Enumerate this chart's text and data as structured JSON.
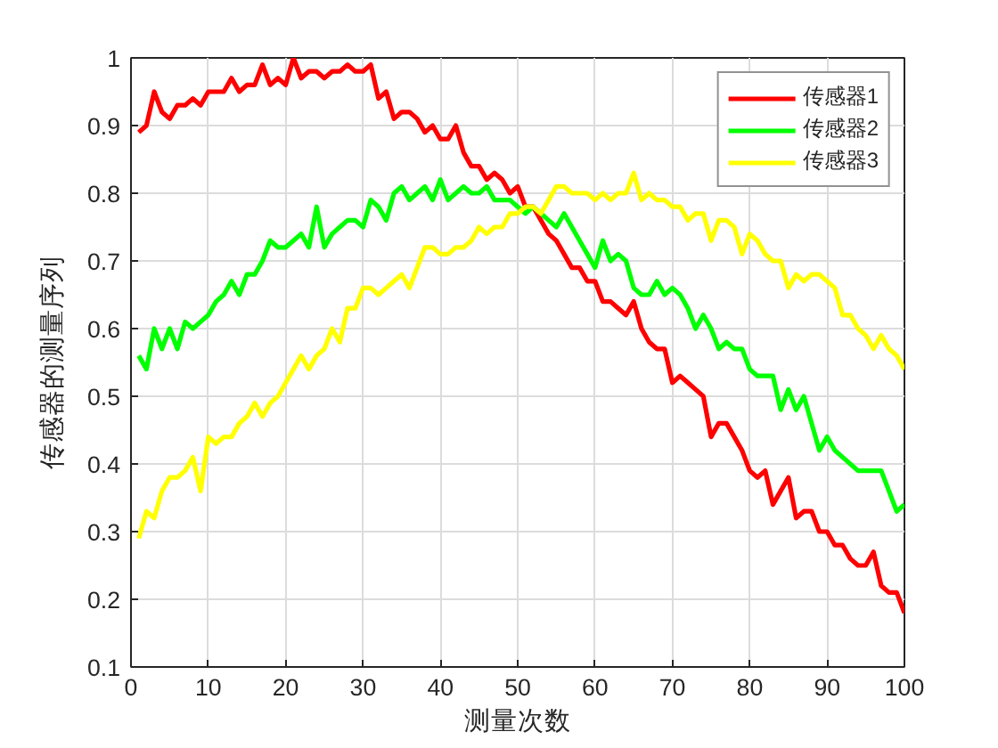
{
  "chart_data": {
    "type": "line",
    "xlabel": "测量次数",
    "ylabel": "传感器的测量序列",
    "xlim": [
      0,
      100
    ],
    "ylim": [
      0.1,
      1
    ],
    "xticks": [
      0,
      10,
      20,
      30,
      40,
      50,
      60,
      70,
      80,
      90,
      100
    ],
    "yticks": [
      0.1,
      0.2,
      0.3,
      0.4,
      0.5,
      0.6,
      0.7,
      0.8,
      0.9,
      1
    ],
    "grid": true,
    "legend": "top right",
    "line_style": "solid",
    "x": [
      1,
      2,
      3,
      4,
      5,
      6,
      7,
      8,
      9,
      10,
      11,
      12,
      13,
      14,
      15,
      16,
      17,
      18,
      19,
      20,
      21,
      22,
      23,
      24,
      25,
      26,
      27,
      28,
      29,
      30,
      31,
      32,
      33,
      34,
      35,
      36,
      37,
      38,
      39,
      40,
      41,
      42,
      43,
      44,
      45,
      46,
      47,
      48,
      49,
      50,
      51,
      52,
      53,
      54,
      55,
      56,
      57,
      58,
      59,
      60,
      61,
      62,
      63,
      64,
      65,
      66,
      67,
      68,
      69,
      70,
      71,
      72,
      73,
      74,
      75,
      76,
      77,
      78,
      79,
      80,
      81,
      82,
      83,
      84,
      85,
      86,
      87,
      88,
      89,
      90,
      91,
      92,
      93,
      94,
      95,
      96,
      97,
      98,
      99,
      100
    ],
    "series": [
      {
        "name": "传感器1",
        "color": "#ff0000",
        "values": [
          0.89,
          0.9,
          0.95,
          0.92,
          0.91,
          0.93,
          0.93,
          0.94,
          0.93,
          0.95,
          0.95,
          0.95,
          0.97,
          0.95,
          0.96,
          0.96,
          0.99,
          0.96,
          0.97,
          0.96,
          1.0,
          0.97,
          0.98,
          0.98,
          0.97,
          0.98,
          0.98,
          0.99,
          0.98,
          0.98,
          0.99,
          0.94,
          0.95,
          0.91,
          0.92,
          0.92,
          0.91,
          0.89,
          0.9,
          0.88,
          0.88,
          0.9,
          0.86,
          0.84,
          0.84,
          0.82,
          0.83,
          0.82,
          0.8,
          0.81,
          0.78,
          0.78,
          0.76,
          0.74,
          0.73,
          0.71,
          0.69,
          0.69,
          0.67,
          0.67,
          0.64,
          0.64,
          0.63,
          0.62,
          0.64,
          0.6,
          0.58,
          0.57,
          0.57,
          0.52,
          0.53,
          0.52,
          0.51,
          0.5,
          0.44,
          0.46,
          0.46,
          0.44,
          0.42,
          0.39,
          0.38,
          0.39,
          0.34,
          0.36,
          0.38,
          0.32,
          0.33,
          0.33,
          0.3,
          0.3,
          0.28,
          0.28,
          0.26,
          0.25,
          0.25,
          0.27,
          0.22,
          0.21,
          0.21,
          0.18
        ]
      },
      {
        "name": "传感器2",
        "color": "#00ff00",
        "values": [
          0.56,
          0.54,
          0.6,
          0.57,
          0.6,
          0.57,
          0.61,
          0.6,
          0.61,
          0.62,
          0.64,
          0.65,
          0.67,
          0.65,
          0.68,
          0.68,
          0.7,
          0.73,
          0.72,
          0.72,
          0.73,
          0.74,
          0.72,
          0.78,
          0.72,
          0.74,
          0.75,
          0.76,
          0.76,
          0.75,
          0.79,
          0.78,
          0.76,
          0.8,
          0.81,
          0.79,
          0.8,
          0.81,
          0.79,
          0.82,
          0.79,
          0.8,
          0.81,
          0.8,
          0.8,
          0.81,
          0.79,
          0.79,
          0.79,
          0.78,
          0.77,
          0.78,
          0.77,
          0.76,
          0.75,
          0.77,
          0.75,
          0.73,
          0.71,
          0.69,
          0.73,
          0.7,
          0.71,
          0.7,
          0.66,
          0.65,
          0.65,
          0.67,
          0.65,
          0.66,
          0.65,
          0.63,
          0.6,
          0.62,
          0.6,
          0.57,
          0.58,
          0.57,
          0.57,
          0.54,
          0.53,
          0.53,
          0.53,
          0.48,
          0.51,
          0.48,
          0.5,
          0.46,
          0.42,
          0.44,
          0.42,
          0.41,
          0.4,
          0.39,
          0.39,
          0.39,
          0.39,
          0.36,
          0.33,
          0.34
        ]
      },
      {
        "name": "传感器3",
        "color": "#ffff00",
        "values": [
          0.29,
          0.33,
          0.32,
          0.36,
          0.38,
          0.38,
          0.39,
          0.41,
          0.36,
          0.44,
          0.43,
          0.44,
          0.44,
          0.46,
          0.47,
          0.49,
          0.47,
          0.49,
          0.5,
          0.52,
          0.54,
          0.56,
          0.54,
          0.56,
          0.57,
          0.6,
          0.58,
          0.63,
          0.63,
          0.66,
          0.66,
          0.65,
          0.66,
          0.67,
          0.68,
          0.66,
          0.69,
          0.72,
          0.72,
          0.71,
          0.71,
          0.72,
          0.72,
          0.73,
          0.75,
          0.74,
          0.75,
          0.75,
          0.77,
          0.77,
          0.78,
          0.78,
          0.77,
          0.79,
          0.81,
          0.81,
          0.8,
          0.8,
          0.8,
          0.79,
          0.8,
          0.79,
          0.8,
          0.8,
          0.83,
          0.79,
          0.8,
          0.79,
          0.79,
          0.78,
          0.78,
          0.76,
          0.77,
          0.77,
          0.73,
          0.76,
          0.76,
          0.75,
          0.71,
          0.74,
          0.73,
          0.71,
          0.7,
          0.7,
          0.66,
          0.68,
          0.67,
          0.68,
          0.68,
          0.67,
          0.66,
          0.62,
          0.62,
          0.6,
          0.59,
          0.57,
          0.59,
          0.57,
          0.56,
          0.54
        ]
      }
    ]
  }
}
